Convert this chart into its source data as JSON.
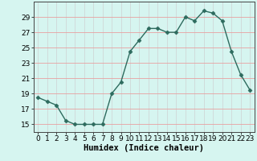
{
  "x": [
    0,
    1,
    2,
    3,
    4,
    5,
    6,
    7,
    8,
    9,
    10,
    11,
    12,
    13,
    14,
    15,
    16,
    17,
    18,
    19,
    20,
    21,
    22,
    23
  ],
  "y": [
    18.5,
    18.0,
    17.5,
    15.5,
    15.0,
    15.0,
    15.0,
    15.0,
    19.0,
    20.5,
    24.5,
    26.0,
    27.5,
    27.5,
    27.0,
    27.0,
    29.0,
    28.5,
    29.8,
    29.5,
    28.5,
    24.5,
    21.5,
    19.5
  ],
  "line_color": "#2d6b5e",
  "marker": "D",
  "marker_size": 2.5,
  "bg_color": "#d6f5f0",
  "grid_major_color": "#f0b0b0",
  "grid_minor_color": "#e8e8e8",
  "xlabel": "Humidex (Indice chaleur)",
  "ylim": [
    14,
    31
  ],
  "xlim": [
    -0.5,
    23.5
  ],
  "yticks": [
    15,
    17,
    19,
    21,
    23,
    25,
    27,
    29
  ],
  "xticks": [
    0,
    1,
    2,
    3,
    4,
    5,
    6,
    7,
    8,
    9,
    10,
    11,
    12,
    13,
    14,
    15,
    16,
    17,
    18,
    19,
    20,
    21,
    22,
    23
  ],
  "xlabel_fontsize": 7.5,
  "tick_fontsize": 6.5,
  "line_width": 1.0
}
